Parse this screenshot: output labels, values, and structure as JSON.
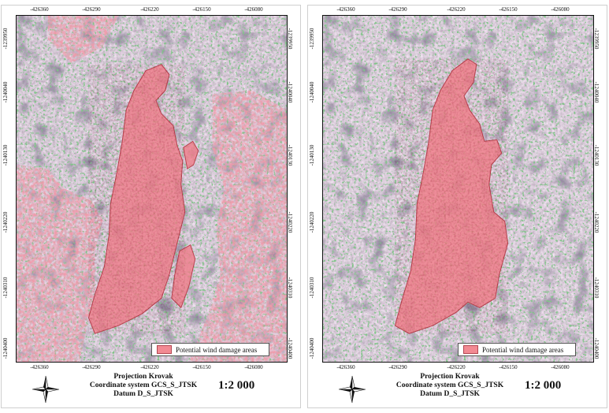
{
  "maps": [
    {
      "id": "left",
      "x_ticks": [
        "-426360",
        "-426290",
        "-426220",
        "-426150",
        "-426080"
      ],
      "y_ticks": [
        "-1239950",
        "-1240040",
        "-1240130",
        "-1240220",
        "-1240310",
        "-1240400"
      ],
      "legend_label": "Potential wind damage areas",
      "footer": {
        "line1": "Projection Krovak",
        "line2": "Coordinate system GCS_S_JTSK",
        "line3": "Datum D_S_JTSK"
      },
      "scale": "1:2 000"
    },
    {
      "id": "right",
      "x_ticks": [
        "-426360",
        "-426290",
        "-426220",
        "-426150",
        "-426080"
      ],
      "y_ticks": [
        "-1239950",
        "-1240040",
        "-1240130",
        "-1240220",
        "-1240310",
        "-1240400"
      ],
      "legend_label": "Potential wind damage areas",
      "footer": {
        "line1": "Projection Krovak",
        "line2": "Coordinate system GCS_S_JTSK",
        "line3": "Datum D_S_JTSK"
      },
      "scale": "1:2 000"
    }
  ],
  "colors": {
    "damage_fill": "#f28a93",
    "damage_stroke": "#b24550",
    "forest_light": "#c9b3c6",
    "forest_dark": "#3a2f44",
    "vegetation_red": "#e0566a"
  },
  "icons": {
    "north_arrow": "compass-star-icon"
  }
}
